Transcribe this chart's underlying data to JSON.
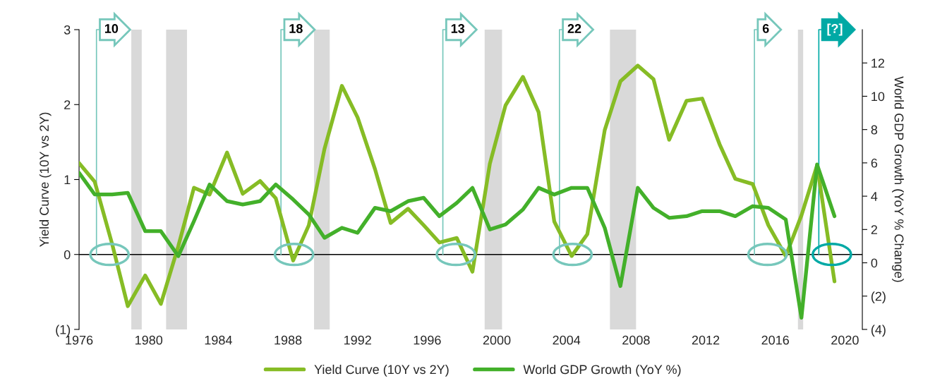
{
  "chart_data": {
    "type": "line",
    "ylabel": "Yield Curve (10Y vs 2Y)",
    "y2label": "World GDP Growth (YoY % Change)",
    "x": [
      1976.0,
      1976.9,
      1977.9,
      1978.8,
      1979.8,
      1980.7,
      1981.7,
      1982.6,
      1983.5,
      1984.5,
      1985.4,
      1986.4,
      1987.3,
      1988.3,
      1989.2,
      1990.1,
      1991.1,
      1992.0,
      1993.0,
      1993.9,
      1994.9,
      1995.8,
      1996.7,
      1997.7,
      1998.6,
      1999.6,
      2000.5,
      2001.5,
      2002.4,
      2003.3,
      2004.3,
      2005.2,
      2006.2,
      2007.1,
      2008.1,
      2009.0,
      2009.9,
      2010.9,
      2011.8,
      2012.8,
      2013.7,
      2014.7,
      2015.6,
      2016.6,
      2017.5,
      2018.4,
      2019.4
    ],
    "series": [
      {
        "name": "Yield Curve (10Y vs 2Y)",
        "color": "#86bc25",
        "values": [
          1.22,
          0.97,
          0.14,
          -0.69,
          -0.28,
          -0.66,
          0.11,
          0.89,
          0.8,
          1.36,
          0.81,
          0.98,
          0.75,
          -0.08,
          0.39,
          1.41,
          2.25,
          1.83,
          1.14,
          0.42,
          0.61,
          0.39,
          0.16,
          0.22,
          -0.23,
          1.21,
          1.99,
          2.37,
          1.9,
          0.44,
          -0.02,
          0.27,
          1.66,
          2.31,
          2.52,
          2.34,
          1.53,
          2.05,
          2.08,
          1.47,
          1.01,
          0.94,
          0.39,
          -0.02,
          0.52,
          1.19,
          -0.36
        ]
      },
      {
        "name": "World GDP Growth (YoY %)",
        "color": "#43b02a",
        "axis": "y2",
        "values": [
          5.4,
          4.1,
          4.1,
          4.2,
          1.9,
          1.9,
          0.4,
          2.5,
          4.7,
          3.7,
          3.5,
          3.7,
          4.7,
          3.8,
          2.9,
          1.5,
          2.1,
          1.8,
          3.3,
          3.1,
          3.7,
          3.9,
          2.8,
          3.6,
          4.5,
          2.0,
          2.3,
          3.2,
          4.5,
          4.1,
          4.5,
          4.5,
          2.1,
          -1.4,
          4.5,
          3.3,
          2.7,
          2.8,
          3.1,
          3.1,
          2.8,
          3.4,
          3.3,
          2.6,
          -3.3,
          5.9,
          2.8
        ]
      }
    ],
    "xlim": [
      1976,
      2021
    ],
    "xticks": [
      1976,
      1980,
      1984,
      1988,
      1992,
      1996,
      2000,
      2004,
      2008,
      2012,
      2016,
      2020
    ],
    "ylim": [
      -1,
      3
    ],
    "yticks": [
      {
        "value": -1,
        "label": "(1)"
      },
      0,
      1,
      2,
      3
    ],
    "y2lim": [
      -4,
      14
    ],
    "y2ticks": [
      {
        "value": -4,
        "label": "(4)"
      },
      {
        "value": -2,
        "label": "(2)"
      },
      0,
      2,
      4,
      6,
      8,
      10,
      12
    ],
    "bands": [
      {
        "axis": "x",
        "from": 1979.0,
        "to": 1979.6,
        "color": "#d9d9d9"
      },
      {
        "axis": "x",
        "from": 1981.0,
        "to": 1982.2,
        "color": "#d9d9d9"
      },
      {
        "axis": "x",
        "from": 1989.5,
        "to": 1990.4,
        "color": "#d9d9d9"
      },
      {
        "axis": "x",
        "from": 1999.3,
        "to": 2000.3,
        "color": "#d9d9d9"
      },
      {
        "axis": "x",
        "from": 2006.5,
        "to": 2008.0,
        "color": "#d9d9d9"
      },
      {
        "axis": "x",
        "from": 2017.3,
        "to": 2017.6,
        "color": "#d9d9d9"
      }
    ],
    "ref_lines": [
      {
        "axis": "y",
        "value": 0,
        "color": "#000000"
      },
      {
        "axis": "x",
        "value": 1977.0,
        "color": "#76c7bb"
      },
      {
        "axis": "x",
        "value": 1987.6,
        "color": "#76c7bb"
      },
      {
        "axis": "x",
        "value": 1996.9,
        "color": "#76c7bb"
      },
      {
        "axis": "x",
        "value": 2003.6,
        "color": "#76c7bb"
      },
      {
        "axis": "x",
        "value": 2014.8,
        "color": "#76c7bb"
      },
      {
        "axis": "x",
        "value": 2018.5,
        "color": "#00a9a5"
      }
    ],
    "annotations": [
      "10",
      "18",
      "13",
      "22",
      "6",
      "[?]"
    ],
    "legend": "bottom",
    "grid": false,
    "marker": "none",
    "line_style": "solid"
  }
}
